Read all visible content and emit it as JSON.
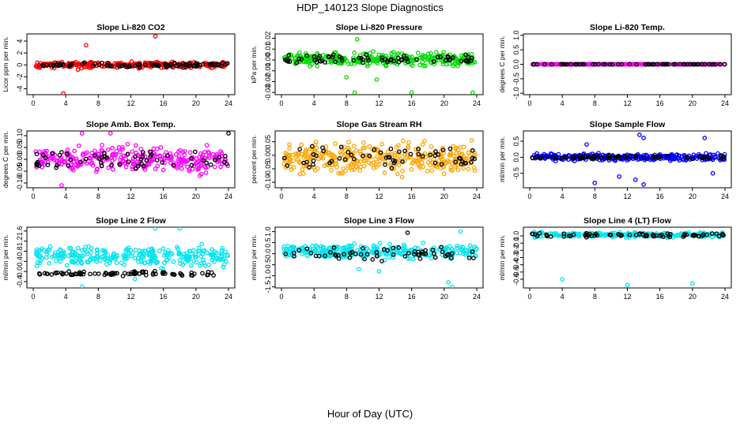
{
  "page": {
    "title": "HDP_140123  Slope Diagnostics",
    "xlabel": "Hour of Day (UTC)"
  },
  "chart_data": [
    {
      "type": "scatter",
      "title": "Slope Li-820 CO2",
      "ylabel": "Licor ppm per min.",
      "xlim": [
        0,
        24
      ],
      "ylim": [
        -5,
        5.2
      ],
      "xticks": [
        0,
        4,
        8,
        12,
        16,
        20,
        24
      ],
      "xtick_labels": [
        "0",
        "4",
        "8",
        "12",
        "16",
        "20",
        "24"
      ],
      "yticks": [
        -4,
        -2,
        0,
        2,
        4
      ],
      "ytick_labels": [
        "-4",
        "-2",
        "0",
        "2",
        "4"
      ],
      "series": [
        {
          "color": "#ff0000",
          "band": [
            -0.7,
            0.7
          ],
          "count": 280,
          "outliers": [
            [
              6.5,
              3.3
            ],
            [
              15.0,
              4.8
            ],
            [
              3.7,
              -4.8
            ],
            [
              5.5,
              -0.8
            ]
          ]
        },
        {
          "color": "#000000",
          "band": [
            -0.5,
            0.5
          ],
          "count": 90,
          "outliers": []
        }
      ]
    },
    {
      "type": "scatter",
      "title": "Slope Li-820 Pressure",
      "ylabel": "kPa per min.",
      "xlim": [
        0,
        24
      ],
      "ylim": [
        -0.032,
        0.024
      ],
      "xticks": [
        0,
        4,
        8,
        12,
        16,
        20,
        24
      ],
      "xtick_labels": [
        "0",
        "4",
        "8",
        "12",
        "16",
        "20",
        "24"
      ],
      "yticks": [
        -0.03,
        -0.02,
        -0.01,
        0.0,
        0.01,
        0.02
      ],
      "ytick_labels": [
        "-0.03",
        "-0.02",
        "-0.01",
        "0.00",
        "0.01",
        "0.02"
      ],
      "series": [
        {
          "color": "#00dd00",
          "band": [
            -0.008,
            0.009
          ],
          "count": 300,
          "outliers": [
            [
              9.3,
              0.019
            ],
            [
              11.7,
              -0.018
            ],
            [
              16.0,
              -0.03
            ],
            [
              9.0,
              -0.03
            ],
            [
              23.5,
              -0.03
            ],
            [
              8.0,
              -0.016
            ]
          ]
        },
        {
          "color": "#000000",
          "band": [
            -0.006,
            0.007
          ],
          "count": 70,
          "outliers": []
        }
      ]
    },
    {
      "type": "scatter",
      "title": "Slope Li-820 Temp.",
      "ylabel": "degrees C per min.",
      "xlim": [
        0,
        24
      ],
      "ylim": [
        -1.05,
        1.05
      ],
      "xticks": [
        0,
        4,
        8,
        12,
        16,
        20,
        24
      ],
      "xtick_labels": [
        "0",
        "4",
        "8",
        "12",
        "16",
        "20",
        "24"
      ],
      "yticks": [
        -1.0,
        -0.5,
        0.0,
        0.5,
        1.0
      ],
      "ytick_labels": [
        "-1.0",
        "-0.5",
        "0.0",
        "0.5",
        "1.0"
      ],
      "series": [
        {
          "color": "#ff00ff",
          "band": [
            -0.005,
            0.005
          ],
          "count": 250,
          "outliers": []
        },
        {
          "color": "#000000",
          "band": [
            -0.005,
            0.005
          ],
          "count": 70,
          "outliers": []
        }
      ]
    },
    {
      "type": "scatter",
      "title": "Slope Amb. Box Temp.",
      "ylabel": "degrees C per min.",
      "xlim": [
        0,
        24
      ],
      "ylim": [
        -0.12,
        0.12
      ],
      "xticks": [
        0,
        4,
        8,
        12,
        16,
        20,
        24
      ],
      "xtick_labels": [
        "0",
        "4",
        "8",
        "12",
        "16",
        "20",
        "24"
      ],
      "yticks": [
        -0.1,
        -0.05,
        0.0,
        0.05,
        0.1
      ],
      "ytick_labels": [
        "-0.10",
        "-0.05",
        "0.00",
        "0.05",
        "0.10"
      ],
      "series": [
        {
          "color": "#ff00ff",
          "band": [
            -0.08,
            0.08
          ],
          "count": 300,
          "outliers": [
            [
              6.0,
              0.11
            ],
            [
              9.5,
              0.11
            ],
            [
              3.5,
              -0.11
            ]
          ]
        },
        {
          "color": "#000000",
          "band": [
            -0.06,
            0.06
          ],
          "count": 60,
          "outliers": [
            [
              24.0,
              0.11
            ]
          ]
        }
      ]
    },
    {
      "type": "scatter",
      "title": "Slope Gas Stream RH",
      "ylabel": "percent per min.",
      "xlim": [
        0,
        24
      ],
      "ylim": [
        -0.12,
        0.09
      ],
      "xticks": [
        0,
        4,
        8,
        12,
        16,
        20,
        24
      ],
      "xtick_labels": [
        "0",
        "4",
        "8",
        "12",
        "16",
        "20",
        "24"
      ],
      "yticks": [
        -0.1,
        -0.05,
        0.0,
        0.05
      ],
      "ytick_labels": [
        "-0.10",
        "-0.05",
        "0.00",
        "0.05"
      ],
      "series": [
        {
          "color": "#ffa500",
          "band": [
            -0.09,
            0.07
          ],
          "count": 340,
          "outliers": []
        },
        {
          "color": "#000000",
          "band": [
            -0.06,
            0.05
          ],
          "count": 60,
          "outliers": []
        }
      ]
    },
    {
      "type": "scatter",
      "title": "Slope Sample Flow",
      "ylabel": "ml/min per min.",
      "xlim": [
        0,
        24
      ],
      "ylim": [
        -0.95,
        0.82
      ],
      "xticks": [
        0,
        4,
        8,
        12,
        16,
        20,
        24
      ],
      "xtick_labels": [
        "0",
        "4",
        "8",
        "12",
        "16",
        "20",
        "24"
      ],
      "yticks": [
        -0.5,
        0.0,
        0.5
      ],
      "ytick_labels": [
        "-0.5",
        "0.0",
        "0.5"
      ],
      "series": [
        {
          "color": "#0000ff",
          "band": [
            -0.15,
            0.15
          ],
          "count": 300,
          "outliers": [
            [
              13.5,
              0.7
            ],
            [
              14.0,
              0.6
            ],
            [
              13.0,
              -0.7
            ],
            [
              8.0,
              -0.8
            ],
            [
              14.0,
              -0.85
            ],
            [
              11.0,
              -0.6
            ],
            [
              21.5,
              0.6
            ],
            [
              22.5,
              -0.5
            ],
            [
              7.0,
              0.4
            ]
          ]
        },
        {
          "color": "#000000",
          "band": [
            -0.08,
            0.08
          ],
          "count": 70,
          "outliers": []
        }
      ]
    },
    {
      "type": "scatter",
      "title": "Slope Line 2 Flow",
      "ylabel": "ml/min per min.",
      "xlim": [
        0,
        24
      ],
      "ylim": [
        -0.65,
        1.75
      ],
      "xticks": [
        0,
        4,
        8,
        12,
        16,
        20,
        24
      ],
      "xtick_labels": [
        "0",
        "4",
        "8",
        "12",
        "16",
        "20",
        "24"
      ],
      "yticks": [
        -0.4,
        0.0,
        0.4,
        0.8,
        1.2,
        1.6
      ],
      "ytick_labels": [
        "-0.4",
        "0.0",
        "0.4",
        "0.8",
        "1.2",
        "1.6"
      ],
      "series": [
        {
          "color": "#00e5ee",
          "band": [
            0.0,
            1.2
          ],
          "count": 280,
          "outliers": [
            [
              6.0,
              -0.6
            ],
            [
              15.0,
              1.7
            ],
            [
              18.0,
              1.7
            ],
            [
              12.5,
              -0.3
            ]
          ]
        },
        {
          "color": "#000000",
          "band": [
            -0.2,
            0.05
          ],
          "count": 80,
          "outliers": []
        }
      ]
    },
    {
      "type": "scatter",
      "title": "Slope Line 3 Flow",
      "ylabel": "ml/min per min.",
      "xlim": [
        0,
        24
      ],
      "ylim": [
        -1.55,
        1.2
      ],
      "xticks": [
        0,
        4,
        8,
        12,
        16,
        20,
        24
      ],
      "xtick_labels": [
        "0",
        "4",
        "8",
        "12",
        "16",
        "20",
        "24"
      ],
      "yticks": [
        -1.5,
        -1.0,
        -0.5,
        0.0,
        0.5,
        1.0
      ],
      "ytick_labels": [
        "-1.5",
        "-1.0",
        "-0.5",
        "0.0",
        "0.5",
        "1.0"
      ],
      "series": [
        {
          "color": "#00e5ee",
          "band": [
            -0.35,
            0.55
          ],
          "count": 300,
          "outliers": [
            [
              21.0,
              -1.5
            ],
            [
              20.5,
              -1.3
            ],
            [
              22.0,
              1.0
            ],
            [
              12.0,
              -0.8
            ],
            [
              9.5,
              -0.7
            ]
          ]
        },
        {
          "color": "#000000",
          "band": [
            -0.45,
            0.45
          ],
          "count": 60,
          "outliers": [
            [
              15.5,
              0.95
            ]
          ]
        }
      ]
    },
    {
      "type": "scatter",
      "title": "Slope Line 4 (LT) Flow",
      "ylabel": "ml/min per min.",
      "xlim": [
        0,
        24
      ],
      "ylim": [
        -0.72,
        0.12
      ],
      "xticks": [
        0,
        4,
        8,
        12,
        16,
        20,
        24
      ],
      "xtick_labels": [
        "0",
        "4",
        "8",
        "12",
        "16",
        "20",
        "24"
      ],
      "yticks": [
        -0.6,
        -0.5,
        -0.4,
        -0.3,
        -0.2,
        -0.1,
        0.0
      ],
      "ytick_labels": [
        "-0.6",
        "-0.5",
        "-0.4",
        "-0.3",
        "-0.2",
        "-0.1",
        "0.0"
      ],
      "series": [
        {
          "color": "#00e5ee",
          "band": [
            -0.03,
            0.06
          ],
          "count": 250,
          "outliers": [
            [
              4.0,
              -0.6
            ],
            [
              12.0,
              -0.68
            ],
            [
              20.0,
              -0.66
            ]
          ]
        },
        {
          "color": "#000000",
          "band": [
            -0.03,
            0.05
          ],
          "count": 70,
          "outliers": []
        }
      ]
    }
  ]
}
